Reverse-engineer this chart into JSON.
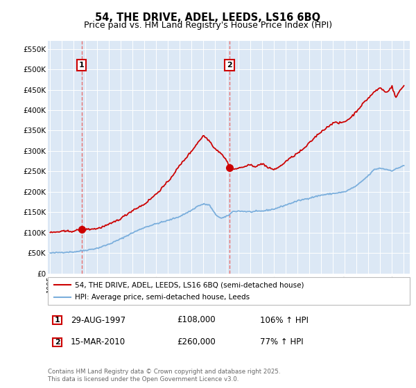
{
  "title": "54, THE DRIVE, ADEL, LEEDS, LS16 6BQ",
  "subtitle": "Price paid vs. HM Land Registry's House Price Index (HPI)",
  "ylabel_ticks": [
    "£0",
    "£50K",
    "£100K",
    "£150K",
    "£200K",
    "£250K",
    "£300K",
    "£350K",
    "£400K",
    "£450K",
    "£500K",
    "£550K"
  ],
  "ytick_values": [
    0,
    50000,
    100000,
    150000,
    200000,
    250000,
    300000,
    350000,
    400000,
    450000,
    500000,
    550000
  ],
  "ylim": [
    0,
    570000
  ],
  "xlim_start": 1994.8,
  "xlim_end": 2025.5,
  "sale1_date": 1997.66,
  "sale1_price": 108000,
  "sale1_label": "1",
  "sale2_date": 2010.21,
  "sale2_price": 260000,
  "sale2_label": "2",
  "property_color": "#cc0000",
  "hpi_color": "#7aaedc",
  "fig_bg": "#ffffff",
  "plot_bg": "#dce8f5",
  "legend_property": "54, THE DRIVE, ADEL, LEEDS, LS16 6BQ (semi-detached house)",
  "legend_hpi": "HPI: Average price, semi-detached house, Leeds",
  "table_rows": [
    [
      "1",
      "29-AUG-1997",
      "£108,000",
      "106% ↑ HPI"
    ],
    [
      "2",
      "15-MAR-2010",
      "£260,000",
      "77% ↑ HPI"
    ]
  ],
  "footer": "Contains HM Land Registry data © Crown copyright and database right 2025.\nThis data is licensed under the Open Government Licence v3.0.",
  "title_fontsize": 10.5,
  "subtitle_fontsize": 9
}
